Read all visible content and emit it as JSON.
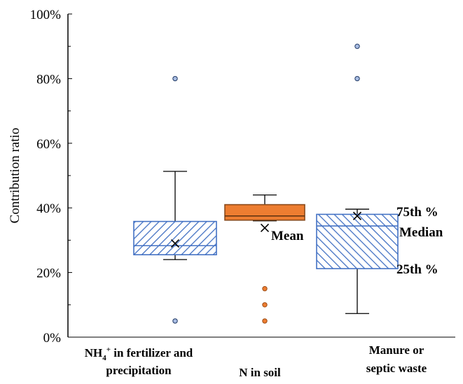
{
  "chart_data": {
    "type": "box",
    "title": "",
    "xlabel": "",
    "ylabel": "Contribution ratio",
    "ylim": [
      0,
      100
    ],
    "y_ticks": [
      0,
      20,
      40,
      60,
      80,
      100
    ],
    "y_tick_labels": [
      "0%",
      "20%",
      "40%",
      "60%",
      "80%",
      "100%"
    ],
    "grid": false,
    "categories": [
      {
        "label_lines": [
          "NH4+ in fertilizer and",
          "precipitation"
        ],
        "label_main": "NH",
        "label_sub": "4",
        "label_sup": "+",
        "label_rest": " in fertilizer and",
        "label_line2": "precipitation",
        "min": 24,
        "q1": 25.5,
        "median": 28.3,
        "q3": 35.8,
        "max": 51.3,
        "mean": 29,
        "outliers": [
          80,
          5
        ],
        "fill": "hatched",
        "color": "#4472c4"
      },
      {
        "label_lines": [
          "N in soil"
        ],
        "label_main": "N in soil",
        "label_sub": "",
        "label_sup": "",
        "label_rest": "",
        "label_line2": "",
        "min": 36,
        "q1": 36.2,
        "median": 37.5,
        "q3": 41,
        "max": 44,
        "mean": 33.8,
        "outliers": [
          15,
          10,
          5
        ],
        "fill": "solid",
        "color": "#ed7d31"
      },
      {
        "label_lines": [
          "Manure or",
          "septic waste"
        ],
        "label_main": "Manure or",
        "label_sub": "",
        "label_sup": "",
        "label_rest": "",
        "label_line2": "septic waste",
        "min": 7.3,
        "q1": 21.2,
        "median": 34.4,
        "q3": 38,
        "max": 39.6,
        "mean": 37.5,
        "outliers": [
          90,
          80
        ],
        "fill": "hatched",
        "color": "#4472c4"
      }
    ],
    "annotations": {
      "mean": "Mean",
      "q3": "75th %",
      "median": "Median",
      "q1": "25th %"
    }
  }
}
